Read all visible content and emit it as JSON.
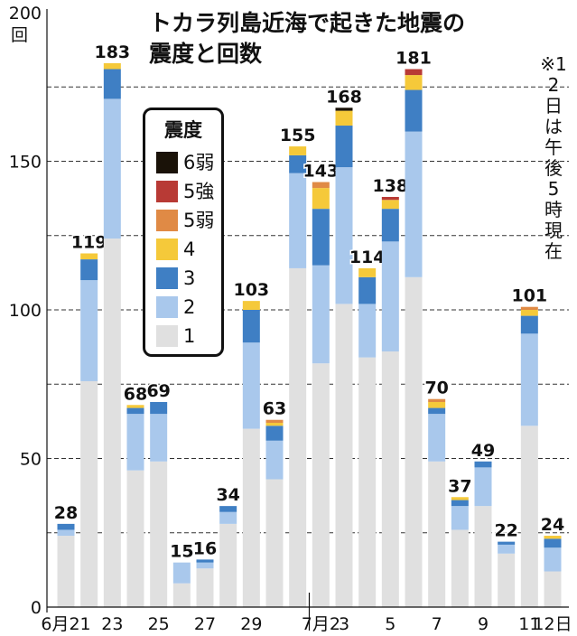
{
  "title_line1": "トカラ列島近海で起きた地震の",
  "title_line2": "震度と回数",
  "unit_label": "回",
  "note": "※12日は午後5時現在",
  "colors": {
    "s6lo": "#1a1208",
    "s5hi": "#b83a35",
    "s5lo": "#e08a45",
    "s4": "#f5c93a",
    "s3": "#3f7fc4",
    "s2": "#a9c8ec",
    "s1": "#e0e0e0"
  },
  "legend": {
    "title": "震度",
    "items": [
      {
        "key": "s6lo",
        "label": "6弱"
      },
      {
        "key": "s5hi",
        "label": "5強"
      },
      {
        "key": "s5lo",
        "label": "5弱"
      },
      {
        "key": "s4",
        "label": "4"
      },
      {
        "key": "s3",
        "label": "3"
      },
      {
        "key": "s2",
        "label": "2"
      },
      {
        "key": "s1",
        "label": "1"
      }
    ]
  },
  "chart_data": {
    "type": "bar",
    "stacked": true,
    "title": "トカラ列島近海で起きた地震の震度と回数",
    "ylabel": "回",
    "ylim": [
      0,
      200
    ],
    "yticks": [
      0,
      50,
      100,
      150,
      200
    ],
    "categories": [
      "6月21",
      "22",
      "23",
      "24",
      "25",
      "26",
      "27",
      "28",
      "29",
      "30",
      "7月1",
      "7月2",
      "3",
      "4",
      "5",
      "6",
      "7",
      "8",
      "9",
      "10",
      "11",
      "12日"
    ],
    "x_tick_labels": [
      {
        "index": 0,
        "label": "6月21"
      },
      {
        "index": 2,
        "label": "23"
      },
      {
        "index": 4,
        "label": "25"
      },
      {
        "index": 6,
        "label": "27"
      },
      {
        "index": 8,
        "label": "29"
      },
      {
        "index": 11,
        "label": "7月2"
      },
      {
        "index": 12,
        "label": "3"
      },
      {
        "index": 14,
        "label": "5"
      },
      {
        "index": 16,
        "label": "7"
      },
      {
        "index": 18,
        "label": "9"
      },
      {
        "index": 20,
        "label": "11"
      },
      {
        "index": 21,
        "label": "12日"
      }
    ],
    "totals": [
      28,
      119,
      183,
      68,
      69,
      15,
      16,
      34,
      103,
      63,
      155,
      143,
      168,
      114,
      138,
      181,
      70,
      37,
      49,
      22,
      101,
      24
    ],
    "series": [
      {
        "name": "1",
        "key": "s1",
        "values": [
          24,
          76,
          124,
          46,
          49,
          8,
          13,
          28,
          60,
          43,
          114,
          82,
          102,
          84,
          86,
          111,
          49,
          26,
          34,
          18,
          61,
          12
        ]
      },
      {
        "name": "2",
        "key": "s2",
        "values": [
          2,
          34,
          47,
          19,
          16,
          7,
          2,
          4,
          29,
          13,
          32,
          33,
          46,
          18,
          37,
          49,
          16,
          8,
          13,
          3,
          31,
          8
        ]
      },
      {
        "name": "3",
        "key": "s3",
        "values": [
          2,
          7,
          10,
          2,
          4,
          0,
          1,
          2,
          11,
          5,
          6,
          19,
          14,
          9,
          11,
          14,
          2,
          2,
          2,
          1,
          6,
          3
        ]
      },
      {
        "name": "4",
        "key": "s4",
        "values": [
          0,
          2,
          2,
          1,
          0,
          0,
          0,
          0,
          3,
          1,
          3,
          7,
          5,
          3,
          3,
          5,
          2,
          1,
          0,
          0,
          2,
          1
        ]
      },
      {
        "name": "5弱",
        "key": "s5lo",
        "values": [
          0,
          0,
          0,
          0,
          0,
          0,
          0,
          0,
          0,
          1,
          0,
          2,
          0,
          0,
          0,
          0,
          1,
          0,
          0,
          0,
          1,
          0
        ]
      },
      {
        "name": "5強",
        "key": "s5hi",
        "values": [
          0,
          0,
          0,
          0,
          0,
          0,
          0,
          0,
          0,
          0,
          0,
          0,
          0,
          0,
          1,
          2,
          0,
          0,
          0,
          0,
          0,
          0
        ]
      },
      {
        "name": "6弱",
        "key": "s6lo",
        "values": [
          0,
          0,
          0,
          0,
          0,
          0,
          0,
          0,
          0,
          0,
          0,
          0,
          1,
          0,
          0,
          0,
          0,
          0,
          0,
          0,
          0,
          0
        ]
      }
    ]
  }
}
